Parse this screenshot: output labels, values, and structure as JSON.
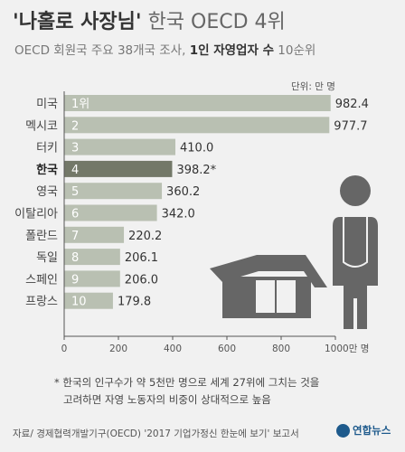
{
  "header": {
    "title_emphasis": "'나홀로 사장님'",
    "title_rest": " 한국 OECD 4위",
    "subtitle_pre": "OECD 회원국 주요 38개국 조사, ",
    "subtitle_bold": "1인 자영업자 수",
    "subtitle_post": " 10순위"
  },
  "unit_label": "단위: 만 명",
  "footnote": {
    "line1": "* 한국의 인구수가 약 5천만 명으로 세계 27위에 그치는 것을",
    "line2": "고려하면 자영 노동자의 비중이 상대적으로 높음"
  },
  "source": "자료/ 경제협력개발기구(OECD) '2017 기업가정신 한눈에 보기' 보고서",
  "logo_text": "연합뉴스",
  "colors": {
    "bar": "#b9c0b2",
    "highlight": "#737868",
    "axis": "#555555",
    "figure": "#666666"
  },
  "chart_data": {
    "type": "bar",
    "orientation": "horizontal",
    "categories": [
      "미국",
      "멕시코",
      "터키",
      "한국",
      "영국",
      "이탈리아",
      "폴란드",
      "독일",
      "스페인",
      "프랑스"
    ],
    "ranks": [
      "1위",
      "2",
      "3",
      "4",
      "5",
      "6",
      "7",
      "8",
      "9",
      "10"
    ],
    "values": [
      982.4,
      977.7,
      410.0,
      398.2,
      360.2,
      342.0,
      220.2,
      206.1,
      206.0,
      179.8
    ],
    "value_labels": [
      "982.4",
      "977.7",
      "410.0",
      "398.2*",
      "360.2",
      "342.0",
      "220.2",
      "206.1",
      "206.0",
      "179.8"
    ],
    "highlight_index": 3,
    "xlim": [
      0,
      1000
    ],
    "xticks": [
      0,
      200,
      400,
      600,
      800,
      1000
    ],
    "xtick_labels": [
      "0",
      "200",
      "400",
      "600",
      "800",
      "1000만 명"
    ],
    "grid": false
  }
}
